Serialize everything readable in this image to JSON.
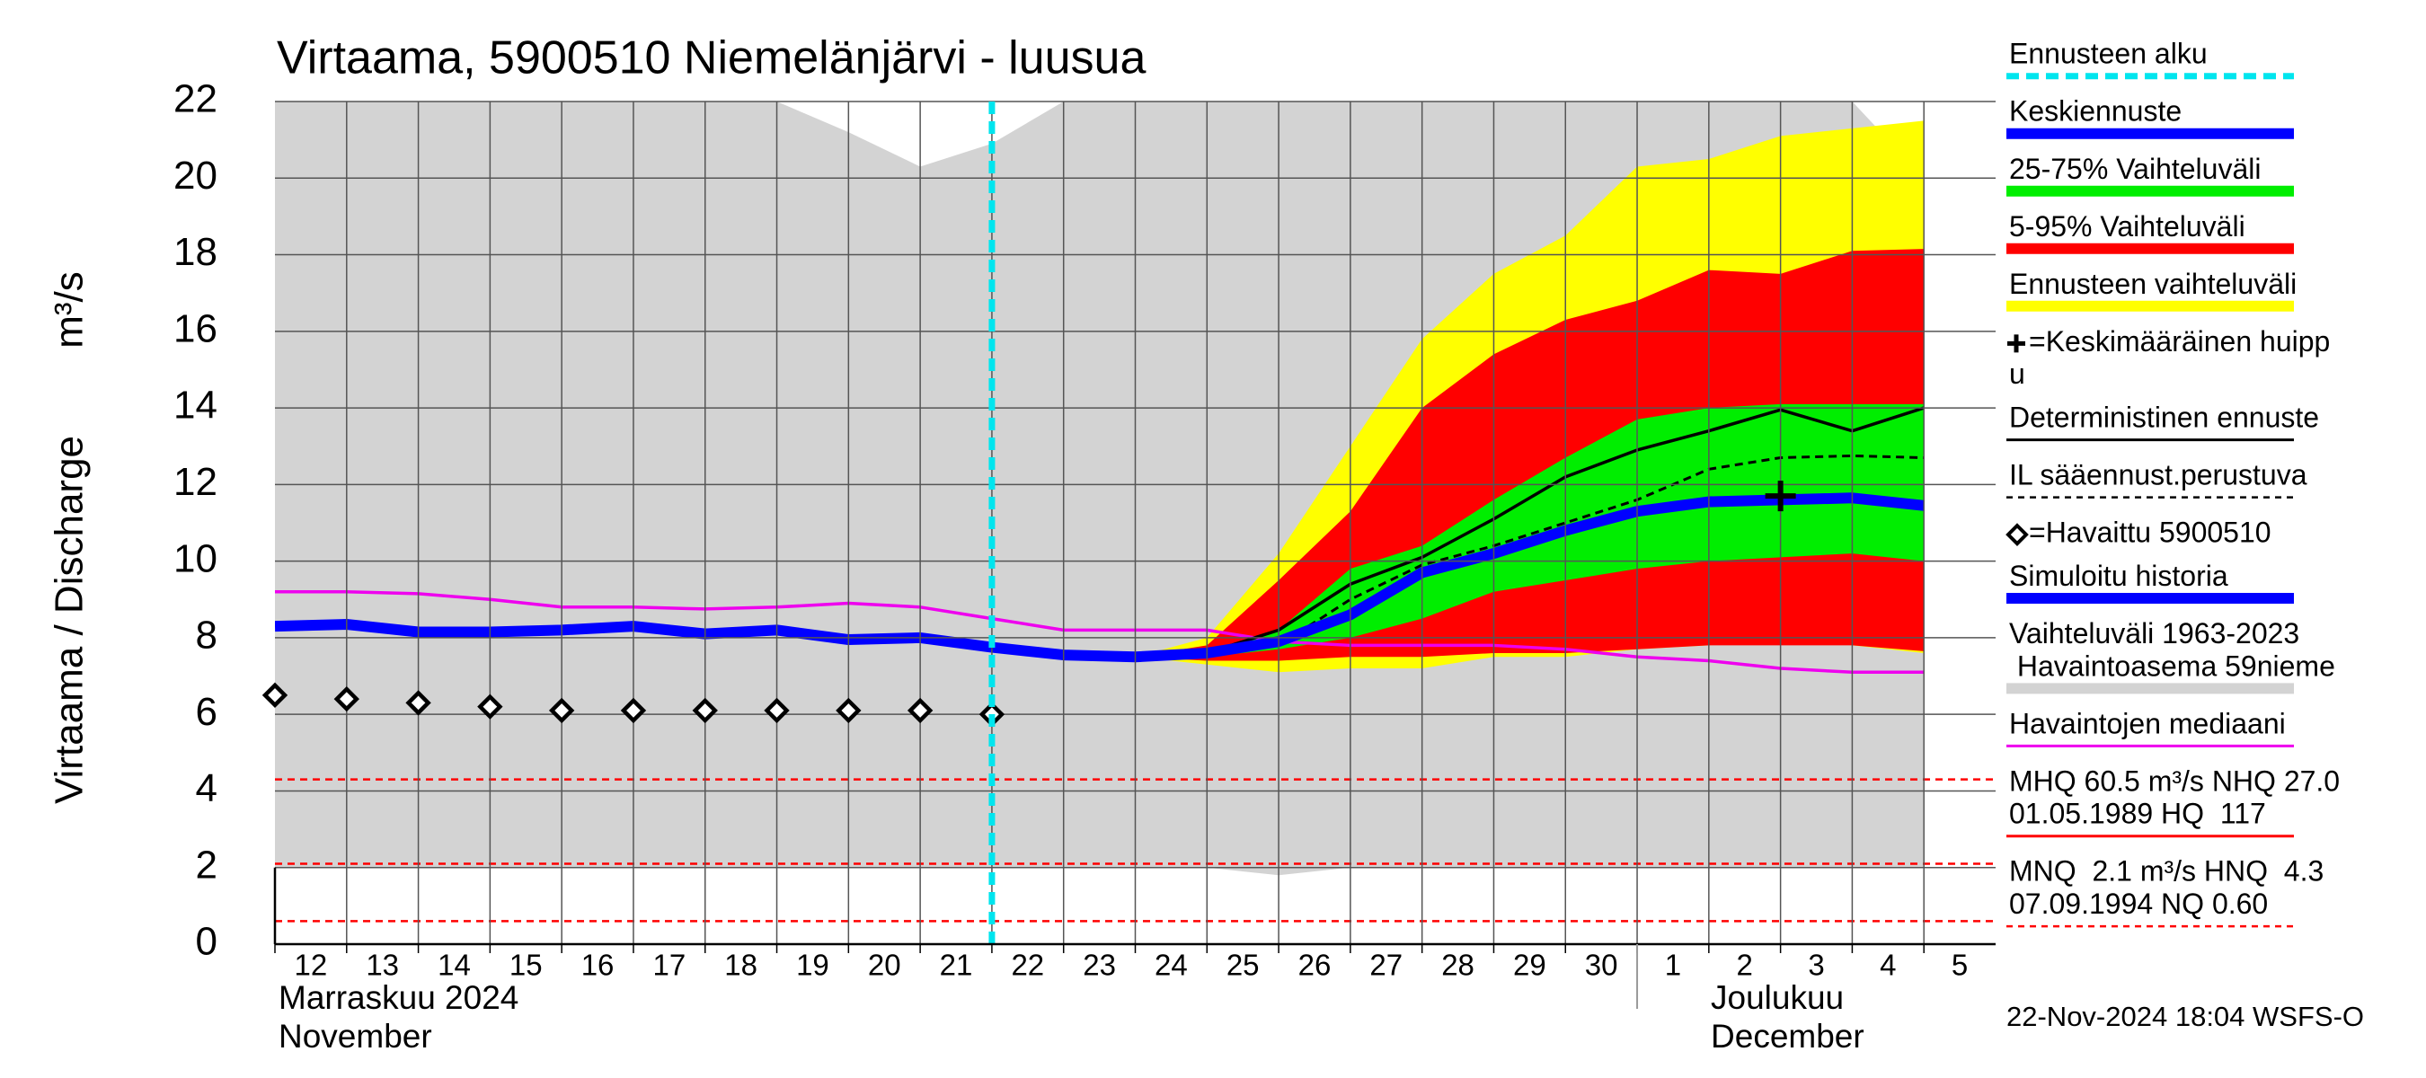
{
  "chart_data": {
    "type": "line",
    "title": "Virtaama, 5900510 Niemelänjärvi - luusua",
    "ylabel": "Virtaama / Discharge",
    "yunit": "m³/s",
    "categories": [
      "12",
      "13",
      "14",
      "15",
      "16",
      "17",
      "18",
      "19",
      "20",
      "21",
      "22",
      "23",
      "24",
      "25",
      "26",
      "27",
      "28",
      "29",
      "30",
      "1",
      "2",
      "3",
      "4",
      "5"
    ],
    "x_groups": [
      [
        "Marraskuu 2024",
        "November"
      ],
      [
        "Joulukuu",
        "December"
      ]
    ],
    "ylim": [
      0,
      22
    ],
    "yticks": [
      0,
      2,
      4,
      6,
      8,
      10,
      12,
      14,
      16,
      18,
      20,
      22
    ],
    "grid": true,
    "forecast_start": "22",
    "forecast_start_color": "#00e5ee",
    "bands": [
      {
        "color": "#d3d3d3",
        "upper": [
          22,
          22,
          22,
          22,
          22,
          22,
          22,
          22,
          21.2,
          20.3,
          20.9,
          22,
          22,
          22,
          22,
          22,
          22,
          22,
          22,
          22,
          22,
          22,
          22,
          20.0
        ],
        "lower": [
          2.0,
          2.0,
          2.0,
          2.0,
          2.0,
          2.0,
          2.0,
          2.0,
          2.0,
          2.0,
          2.0,
          2.0,
          2.0,
          2.0,
          1.8,
          2.0,
          2.0,
          2.0,
          2.0,
          2.0,
          2.0,
          2.0,
          2.0,
          2.0
        ]
      },
      {
        "color": "#ffff00",
        "upper": [
          null,
          null,
          null,
          null,
          null,
          null,
          null,
          null,
          null,
          null,
          null,
          null,
          7.5,
          8.0,
          10.2,
          13.0,
          15.8,
          17.5,
          18.5,
          20.3,
          20.5,
          21.1,
          21.3,
          21.5
        ],
        "lower": [
          null,
          null,
          null,
          null,
          null,
          null,
          null,
          null,
          null,
          null,
          null,
          null,
          7.5,
          7.3,
          7.1,
          7.2,
          7.2,
          7.5,
          7.5,
          7.7,
          7.8,
          8.0,
          7.8,
          7.6
        ]
      },
      {
        "color": "#ff0000",
        "upper": [
          null,
          null,
          null,
          null,
          null,
          null,
          null,
          null,
          null,
          null,
          null,
          null,
          7.5,
          7.8,
          9.5,
          11.3,
          14.0,
          15.4,
          16.3,
          16.8,
          17.6,
          17.5,
          18.1,
          18.15
        ],
        "lower": [
          null,
          null,
          null,
          null,
          null,
          null,
          null,
          null,
          null,
          null,
          null,
          null,
          7.5,
          7.4,
          7.4,
          7.5,
          7.5,
          7.6,
          7.6,
          7.7,
          7.8,
          7.8,
          7.8,
          7.65
        ]
      },
      {
        "color": "#00ee00",
        "upper": [
          null,
          null,
          null,
          null,
          null,
          null,
          null,
          null,
          null,
          null,
          null,
          null,
          7.5,
          7.6,
          8.2,
          9.8,
          10.4,
          11.6,
          12.7,
          13.7,
          14.0,
          14.1,
          14.1,
          14.1
        ],
        "lower": [
          null,
          null,
          null,
          null,
          null,
          null,
          null,
          null,
          null,
          null,
          null,
          null,
          7.5,
          7.5,
          7.7,
          8.0,
          8.5,
          9.2,
          9.5,
          9.8,
          10.0,
          10.1,
          10.2,
          10.0
        ]
      }
    ],
    "reference_lines": [
      4.3,
      2.1,
      0.6
    ],
    "reference_color": "#ff0000",
    "series": [
      {
        "color": "#ee00ee",
        "style": "thin",
        "values": [
          9.2,
          9.2,
          9.15,
          9.0,
          8.8,
          8.8,
          8.75,
          8.8,
          8.9,
          8.8,
          8.5,
          8.2,
          8.2,
          8.2,
          7.9,
          7.8,
          7.8,
          7.8,
          7.7,
          7.5,
          7.4,
          7.2,
          7.1,
          7.1
        ]
      },
      {
        "color": "#0000ff",
        "style": "thick",
        "values": [
          8.3,
          8.35,
          8.15,
          8.15,
          8.2,
          8.3,
          8.1,
          8.2,
          7.95,
          8.0,
          7.75,
          null,
          null,
          null,
          null,
          null,
          null,
          null,
          null,
          null,
          null,
          null,
          null,
          null
        ]
      },
      {
        "color": "#000000",
        "style": "thin",
        "values": [
          null,
          null,
          null,
          null,
          null,
          null,
          null,
          null,
          null,
          null,
          7.75,
          7.55,
          7.5,
          7.6,
          8.2,
          9.4,
          10.1,
          11.1,
          12.2,
          12.9,
          13.4,
          13.95,
          13.4,
          14.0
        ]
      },
      {
        "color": "#000000",
        "style": "dashed",
        "values": [
          null,
          null,
          null,
          null,
          null,
          null,
          null,
          null,
          null,
          null,
          7.75,
          7.55,
          7.5,
          7.55,
          7.8,
          9.0,
          9.9,
          10.4,
          11.0,
          11.6,
          12.4,
          12.7,
          12.75,
          12.7
        ]
      },
      {
        "color": "#0000ff",
        "style": "thick",
        "values": [
          null,
          null,
          null,
          null,
          null,
          null,
          null,
          null,
          null,
          null,
          7.75,
          7.55,
          7.5,
          7.6,
          7.9,
          8.6,
          9.7,
          10.2,
          10.8,
          11.3,
          11.55,
          11.6,
          11.65,
          11.45
        ]
      },
      {
        "color": "#000000",
        "style": "diamond",
        "values": [
          6.5,
          6.4,
          6.3,
          6.2,
          6.1,
          6.1,
          6.1,
          6.1,
          6.1,
          6.1,
          6.0,
          null,
          null,
          null,
          null,
          null,
          null,
          null,
          null,
          null,
          null,
          null,
          null,
          null
        ]
      }
    ],
    "mean_peak": {
      "category": "3",
      "value": 11.7,
      "color": "#000000"
    },
    "legend": [
      {
        "labels": [
          "Ennusteen alku"
        ],
        "color": "#00e5ee",
        "style": "dashed"
      },
      {
        "labels": [
          "Keskiennuste"
        ],
        "color": "#0000ff",
        "style": "thick"
      },
      {
        "labels": [
          "25-75% Vaihteluväli"
        ],
        "color": "#00ee00",
        "style": "thick"
      },
      {
        "labels": [
          "5-95% Vaihteluväli"
        ],
        "color": "#ff0000",
        "style": "thick"
      },
      {
        "labels": [
          "Ennusteen vaihteluväli"
        ],
        "color": "#ffff00",
        "style": "thick"
      },
      {
        "labels": [
          "=Keskimääräinen huipp",
          "u"
        ],
        "color": "#000000",
        "style": "plus"
      },
      {
        "labels": [
          "Deterministinen ennuste"
        ],
        "color": "#000000",
        "style": "thin"
      },
      {
        "labels": [
          "IL sääennust.perustuva"
        ],
        "color": "#000000",
        "style": "dashed"
      },
      {
        "labels": [
          "=Havaittu 5900510"
        ],
        "color": "#000000",
        "style": "diamond"
      },
      {
        "labels": [
          "Simuloitu historia"
        ],
        "color": "#0000ff",
        "style": "thick"
      },
      {
        "labels": [
          "Vaihteluväli 1963-2023",
          " Havaintoasema 59nieme"
        ],
        "color": "#d3d3d3",
        "style": "thick"
      },
      {
        "labels": [
          "Havaintojen mediaani"
        ],
        "color": "#ee00ee",
        "style": "thin"
      },
      {
        "labels": [
          "MHQ 60.5 m³/s NHQ 27.0",
          "01.05.1989 HQ  117"
        ],
        "color": "#ff0000",
        "style": "thin"
      },
      {
        "labels": [
          "MNQ  2.1 m³/s HNQ  4.3",
          "07.09.1994 NQ 0.60"
        ],
        "color": "#ff0000",
        "style": "dashed"
      }
    ],
    "footer": "22-Nov-2024 18:04 WSFS-O"
  }
}
